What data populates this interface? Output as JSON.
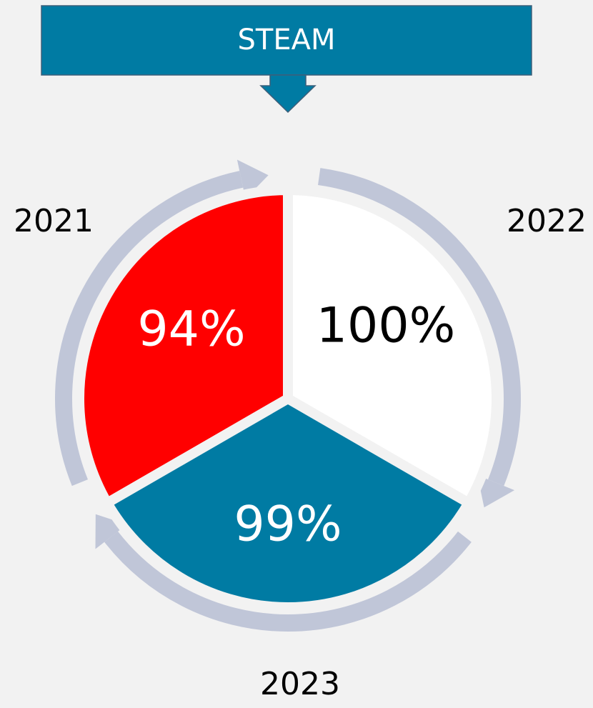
{
  "header": {
    "title": "STEAM"
  },
  "segments": [
    {
      "year": "2021",
      "label": "94%"
    },
    {
      "year": "2022",
      "label": "100%"
    },
    {
      "year": "2023",
      "label": "99%"
    }
  ]
}
